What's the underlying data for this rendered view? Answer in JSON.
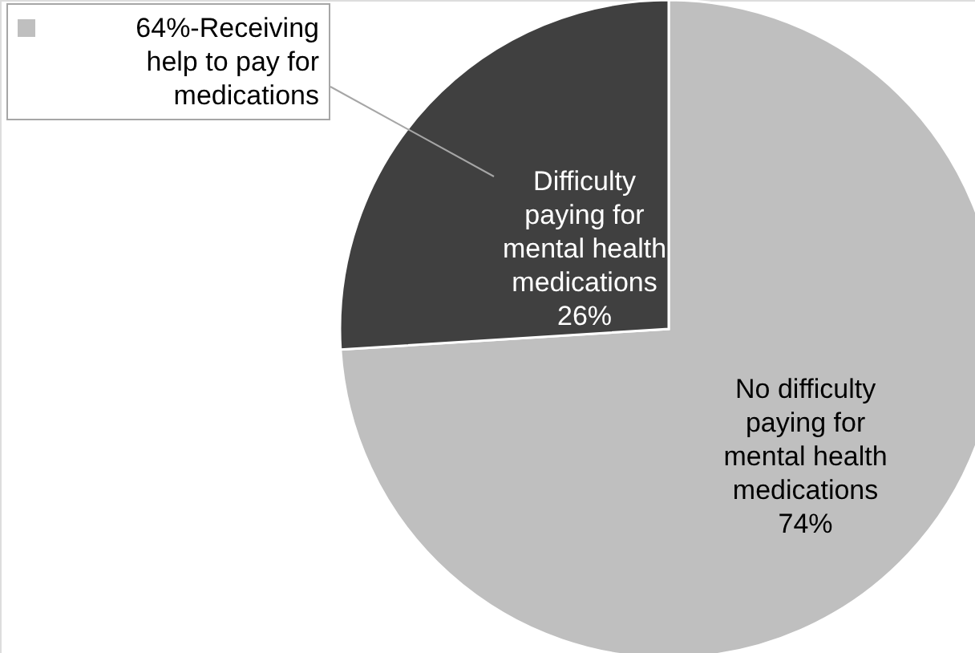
{
  "chart_data": {
    "type": "pie",
    "categories": [
      "No difficulty paying for mental health medications",
      "Difficulty paying for mental health medications"
    ],
    "values": [
      74,
      26
    ],
    "colors": [
      "#bfbfbf",
      "#404040"
    ],
    "value_labels": [
      "74%",
      "26%"
    ],
    "annotations": [
      "64%-Receiving help to pay for medications"
    ]
  }
}
